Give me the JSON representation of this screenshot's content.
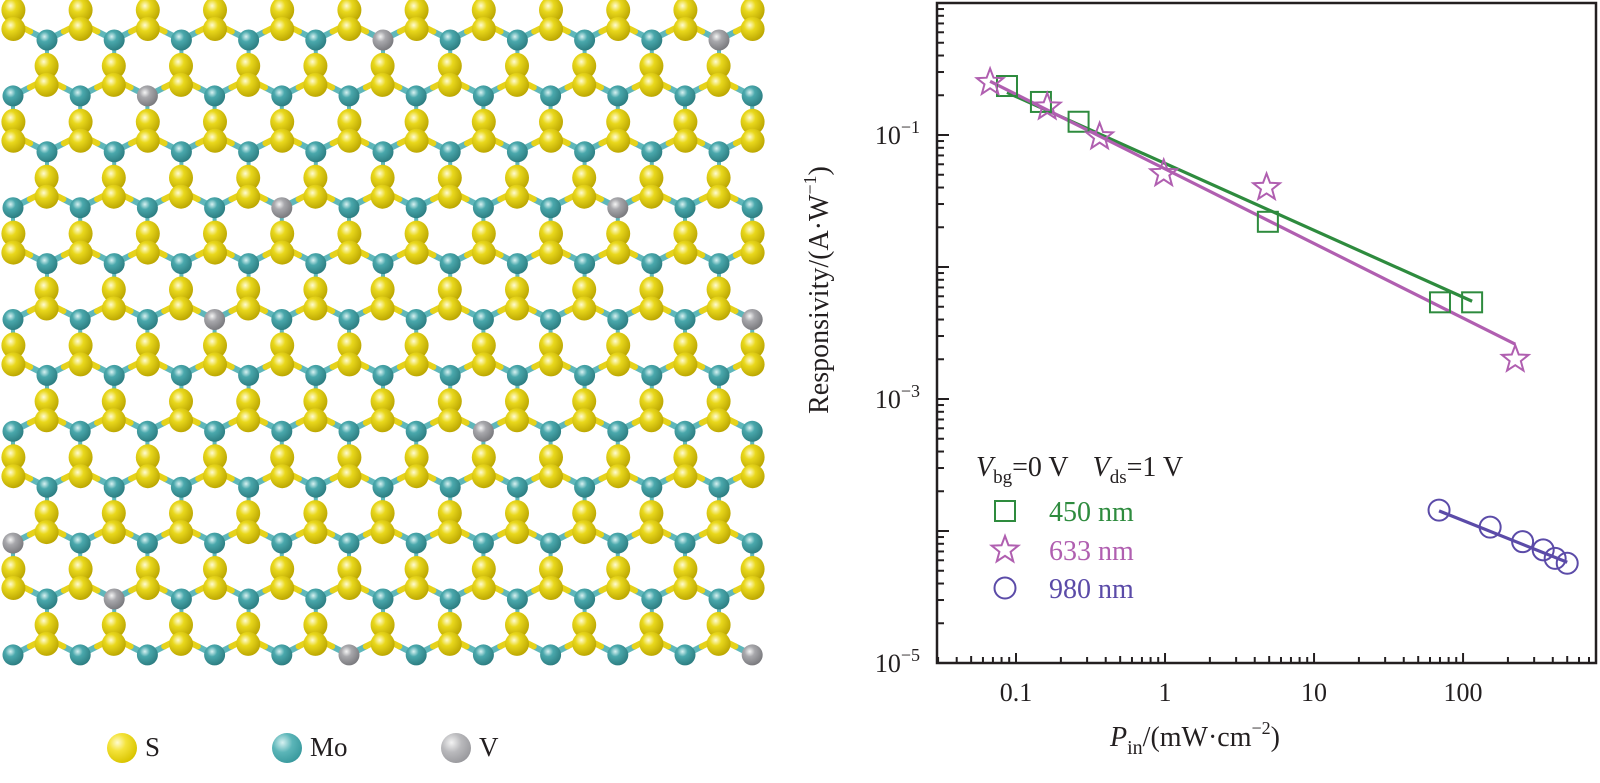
{
  "lattice": {
    "legend": [
      {
        "symbol": "S",
        "atom": "sulfur"
      },
      {
        "symbol": "Mo",
        "atom": "molybdenum"
      },
      {
        "symbol": "V",
        "atom": "vanadium"
      }
    ],
    "colors": {
      "S": "#e9d81c",
      "Mo": "#4aa8ac",
      "V": "#a8a8ac",
      "bond_S": "#e6d21a",
      "bond_Mo": "#5fb7ba"
    },
    "rows": 12,
    "v_dopant_sites": [
      {
        "row": 0,
        "col": 5
      },
      {
        "row": 0,
        "col": 10
      },
      {
        "row": 1,
        "col": 2
      },
      {
        "row": 3,
        "col": 4
      },
      {
        "row": 3,
        "col": 9
      },
      {
        "row": 5,
        "col": 3
      },
      {
        "row": 5,
        "col": 11
      },
      {
        "row": 7,
        "col": 7
      },
      {
        "row": 9,
        "col": 0
      },
      {
        "row": 10,
        "col": 1
      },
      {
        "row": 11,
        "col": 5
      },
      {
        "row": 11,
        "col": 11
      }
    ]
  },
  "chart_data": {
    "type": "scatter",
    "title": "",
    "xlabel": {
      "symbol": "P",
      "subscript": "in",
      "unit": "/(mW·cm",
      "exp": "−2",
      "close": ")"
    },
    "ylabel": {
      "text": "Responsivity/(A·W",
      "exp": "−1",
      "close": ")"
    },
    "xscale": "log",
    "yscale": "log",
    "xlim": [
      0.0295,
      780
    ],
    "ylim": [
      1e-05,
      1
    ],
    "grid": false,
    "x_ticks": [
      {
        "value": 0.1,
        "label": "0.1"
      },
      {
        "value": 1,
        "label": "1"
      },
      {
        "value": 10,
        "label": "10"
      },
      {
        "value": 100,
        "label": "100"
      }
    ],
    "y_ticks": [
      {
        "value": 0.1,
        "base": "10",
        "exp": "−1"
      },
      {
        "value": 0.001,
        "base": "10",
        "exp": "−3"
      },
      {
        "value": 1e-05,
        "base": "10",
        "exp": "−5"
      }
    ],
    "legend": {
      "placement": "bottom-left",
      "header": {
        "v1": "V",
        "v1_sub": "bg",
        "v1_val": "=0 V",
        "v2": "V",
        "v2_sub": "ds",
        "v2_val": "=1 V"
      }
    },
    "series": [
      {
        "name": "450 nm",
        "marker": "square",
        "color": "#2e8b3e",
        "x": [
          0.087,
          0.147,
          0.263,
          4.9,
          70,
          115
        ],
        "y": [
          0.235,
          0.178,
          0.126,
          0.022,
          0.0054,
          0.0054
        ],
        "fit": {
          "x": [
            0.087,
            115
          ],
          "y": [
            0.21,
            0.0055
          ]
        }
      },
      {
        "name": "633 nm",
        "marker": "star",
        "color": "#b05fb0",
        "x": [
          0.067,
          0.162,
          0.364,
          0.98,
          4.8,
          224
        ],
        "y": [
          0.25,
          0.163,
          0.097,
          0.051,
          0.04,
          0.002
        ],
        "fit": {
          "x": [
            0.067,
            224
          ],
          "y": [
            0.255,
            0.0026
          ]
        }
      },
      {
        "name": "980 nm",
        "marker": "circle",
        "color": "#5b4ba8",
        "x": [
          69,
          152,
          251,
          345,
          415,
          500
        ],
        "y": [
          0.000144,
          0.000107,
          8.3e-05,
          7.2e-05,
          6.2e-05,
          5.7e-05
        ],
        "fit": {
          "x": [
            69,
            500
          ],
          "y": [
            0.000142,
            5.8e-05
          ]
        }
      }
    ]
  }
}
